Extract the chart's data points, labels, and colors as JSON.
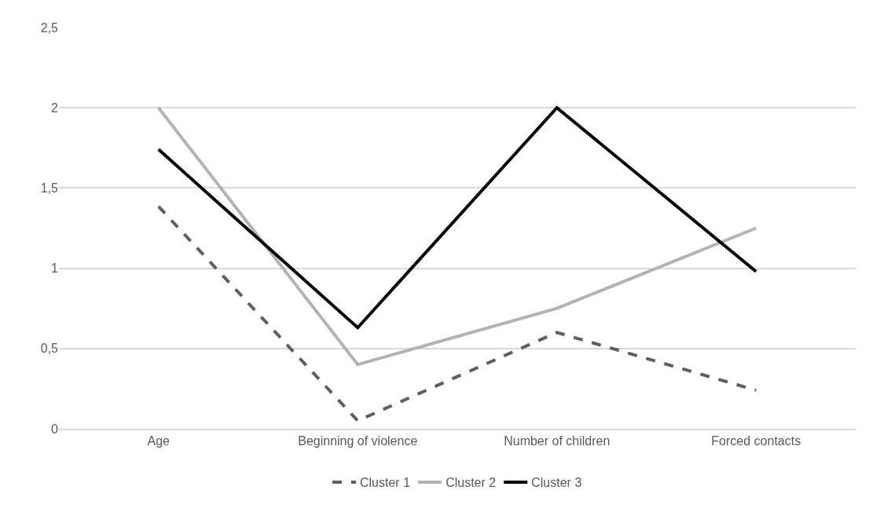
{
  "chart_data": {
    "type": "line",
    "categories": [
      "Age",
      "Beginning of violence",
      "Number of children",
      "Forced contacts"
    ],
    "series": [
      {
        "name": "Cluster 1",
        "color": "#5f5f5f",
        "line_style": "dashed",
        "values": [
          1.385,
          0.05,
          0.6,
          0.24
        ]
      },
      {
        "name": "Cluster 2",
        "color": "#b3b3b3",
        "line_style": "solid",
        "values": [
          2.0,
          0.4,
          0.75,
          1.25
        ]
      },
      {
        "name": "Cluster 3",
        "color": "#000000",
        "line_style": "solid",
        "values": [
          1.74,
          0.63,
          2.0,
          0.98
        ]
      }
    ],
    "ylim": [
      0,
      2.5
    ],
    "yticks": [
      0,
      {
        "value": 0.5,
        "label": "0,5"
      },
      1,
      {
        "value": 1.5,
        "label": "1,5"
      },
      2,
      {
        "value": 2.5,
        "label": "2,5"
      }
    ],
    "grid": "y",
    "legend": "bottom",
    "marker": "none"
  }
}
